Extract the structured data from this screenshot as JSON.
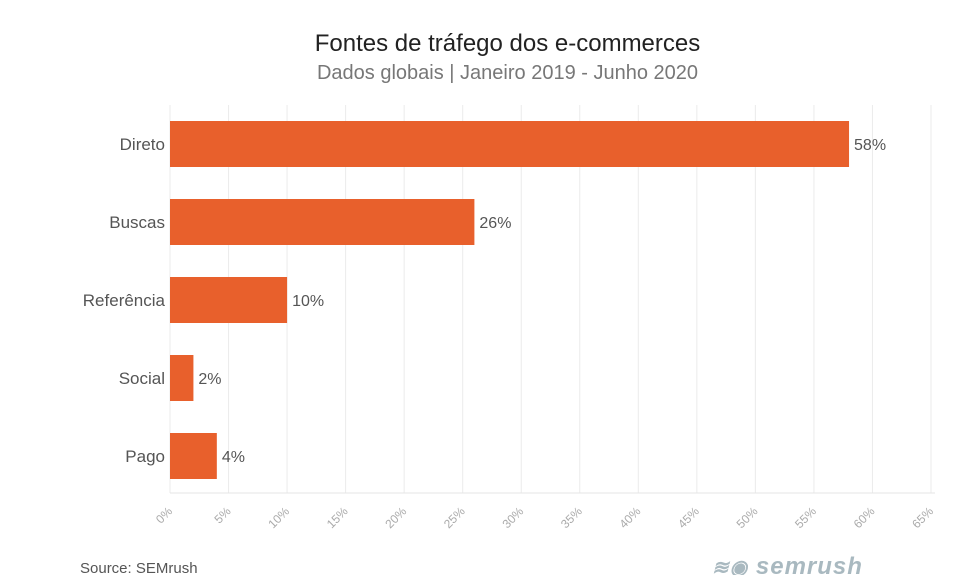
{
  "chart_data": {
    "type": "bar",
    "orientation": "horizontal",
    "title": "Fontes de tráfego dos e-commerces",
    "subtitle": "Dados globais | Janeiro 2019 - Junho 2020",
    "categories": [
      "Direto",
      "Buscas",
      "Referência",
      "Social",
      "Pago"
    ],
    "values": [
      58,
      26,
      10,
      2,
      4
    ],
    "data_labels": [
      "58%",
      "26%",
      "10%",
      "2%",
      "4%"
    ],
    "xlim": [
      0,
      65
    ],
    "xticks": [
      "0%",
      "5%",
      "10%",
      "15%",
      "20%",
      "25%",
      "30%",
      "35%",
      "40%",
      "45%",
      "50%",
      "55%",
      "60%",
      "65%"
    ],
    "grid": true,
    "bar_color": "#e8602c"
  },
  "source": "Source: SEMrush",
  "logo": "SEMRUSH"
}
